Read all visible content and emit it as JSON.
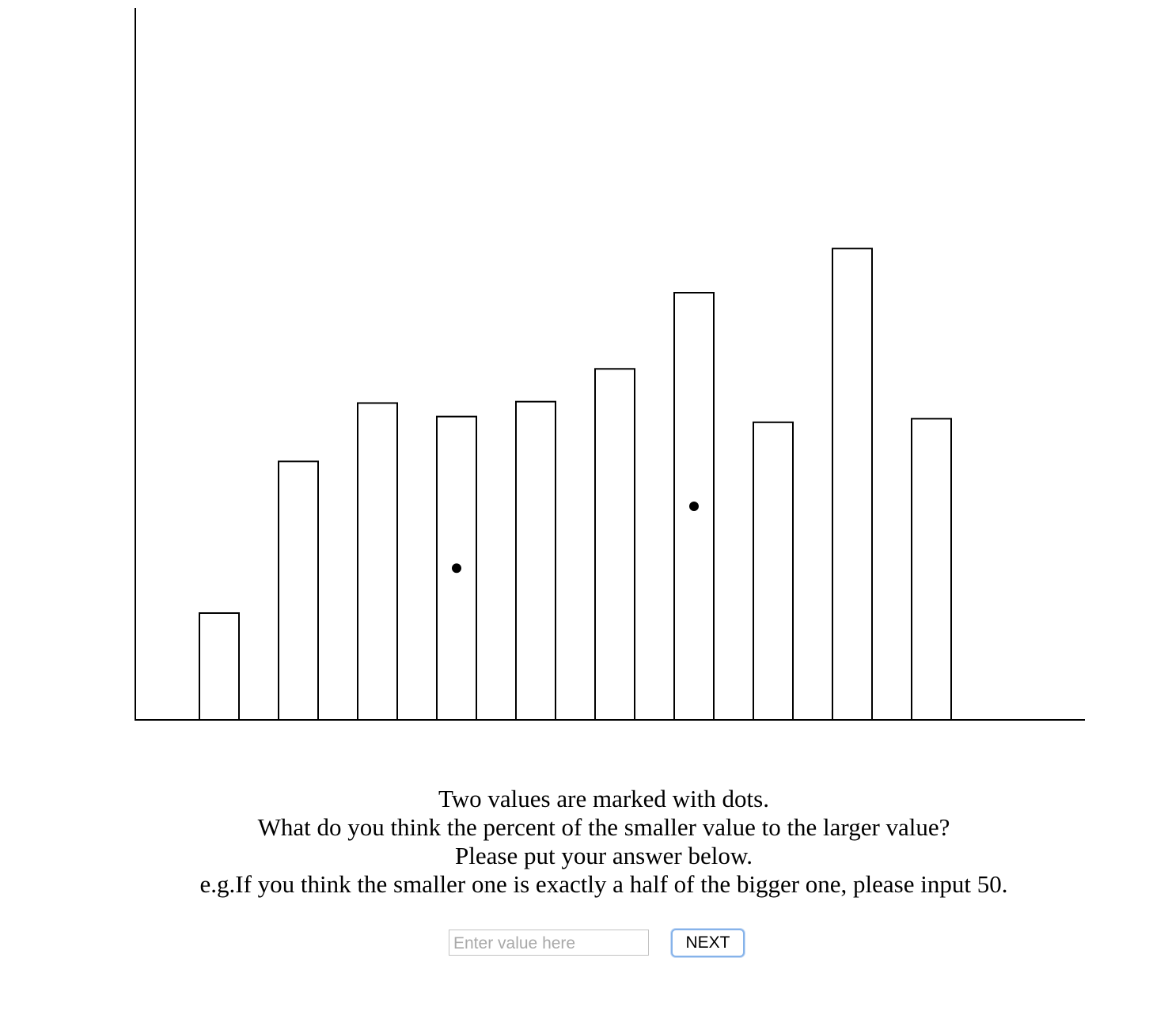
{
  "chart_data": {
    "type": "bar",
    "title": "",
    "xlabel": "",
    "ylabel": "",
    "categories": [
      "",
      "",
      "",
      "",
      "",
      "",
      "",
      "",
      "",
      ""
    ],
    "values": [
      15,
      36.3,
      44.5,
      42.6,
      44.7,
      49.3,
      60,
      41.8,
      66.2,
      42.3
    ],
    "marked_indices": [
      3,
      6
    ],
    "ylim": [
      0,
      100
    ],
    "grid": false,
    "show_ticks": false,
    "bar_fill": "#ffffff",
    "bar_stroke": "#000000",
    "dot_color": "#000000"
  },
  "instructions": {
    "line1": "Two values are marked with dots.",
    "line2": "What do you think the percent of the smaller value to the larger value?",
    "line3": "Please put your answer below.",
    "line4": "e.g.If you think the smaller one is exactly a half of the bigger one, please input 50."
  },
  "answer": {
    "placeholder": "Enter value here",
    "value": ""
  },
  "next_button": {
    "label": "NEXT"
  }
}
